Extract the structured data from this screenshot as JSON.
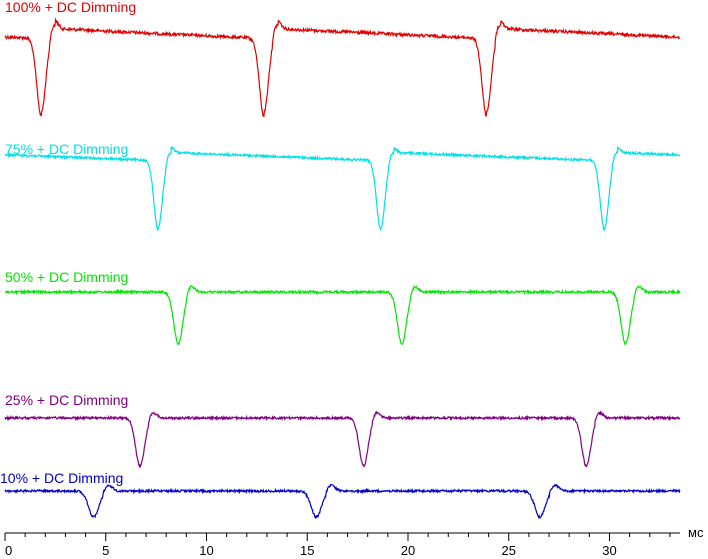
{
  "chart_data": {
    "type": "line",
    "title": "",
    "xlabel": "мс",
    "ylabel": "",
    "xlim": [
      0,
      33.5
    ],
    "xticks": [
      0,
      5,
      10,
      15,
      20,
      25,
      30
    ],
    "grid": false,
    "legend": "none",
    "period_ms": 11.05,
    "series": [
      {
        "name": "100% + DC Dimming",
        "color": "#e30000",
        "dip_times_ms": [
          1.8,
          12.85,
          23.9
        ],
        "dip_depth": 0.85,
        "dip_width_ms": 0.7
      },
      {
        "name": "75% + DC Dimming",
        "color": "#00e0e6",
        "dip_times_ms": [
          7.6,
          18.65,
          29.75
        ],
        "dip_depth": 0.75,
        "dip_width_ms": 0.65
      },
      {
        "name": "50% + DC Dimming",
        "color": "#00e600",
        "dip_times_ms": [
          8.6,
          19.7,
          30.8
        ],
        "dip_depth": 0.55,
        "dip_width_ms": 0.7
      },
      {
        "name": "25% + DC Dimming",
        "color": "#800080",
        "dip_times_ms": [
          6.7,
          17.8,
          28.85
        ],
        "dip_depth": 0.55,
        "dip_width_ms": 0.7
      },
      {
        "name": "10% + DC Dimming",
        "color": "#0000c8",
        "dip_times_ms": [
          4.4,
          15.45,
          26.55
        ],
        "dip_depth": 0.3,
        "dip_width_ms": 0.8
      }
    ]
  }
}
